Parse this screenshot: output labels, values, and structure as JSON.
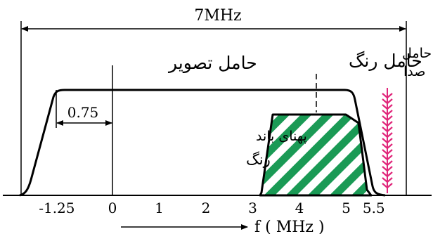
{
  "bandwidth_label": "7MHz",
  "offset_label": "0.75",
  "picture_carrier_label": "حامل تصویر",
  "color_carrier_label": "حامل رنگ",
  "sound_carrier_label_line1": "حامل",
  "sound_carrier_label_line2": "صدا",
  "color_band_label_line1": "پهنای باند",
  "color_band_label_line2": "رنگ",
  "axis_label": "f ( MHz )",
  "ticks": [
    {
      "value": -1.25,
      "label": "-1.25"
    },
    {
      "value": 0,
      "label": "0"
    },
    {
      "value": 1,
      "label": "1"
    },
    {
      "value": 2,
      "label": "2"
    },
    {
      "value": 3,
      "label": "3"
    },
    {
      "value": 4,
      "label": "4"
    },
    {
      "value": 5,
      "label": "5"
    },
    {
      "value": 5.5,
      "label": "5.5"
    }
  ],
  "colors": {
    "stroke": "#000000",
    "hatch": "#1a9a55",
    "sound_carrier": "#e0267a"
  }
}
